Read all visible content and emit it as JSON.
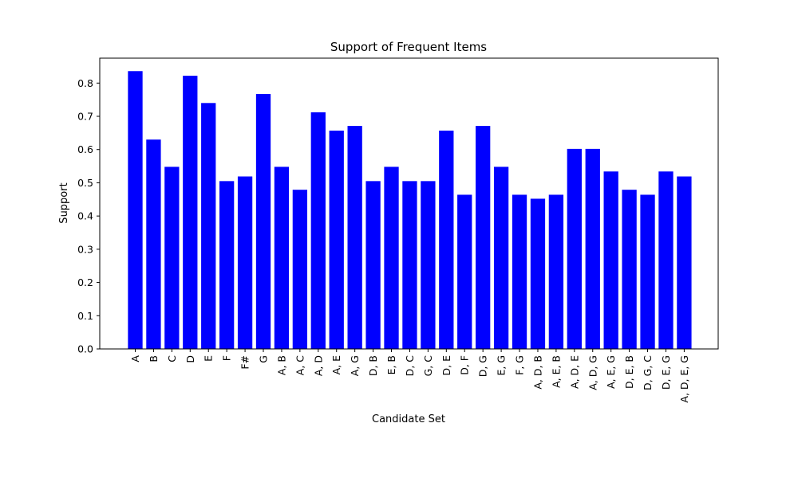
{
  "chart_data": {
    "type": "bar",
    "title": "Support of Frequent Items",
    "xlabel": "Candidate Set",
    "ylabel": "Support",
    "ylim": [
      0,
      0.875
    ],
    "yticks": [
      0.0,
      0.1,
      0.2,
      0.3,
      0.4,
      0.5,
      0.6,
      0.7,
      0.8
    ],
    "ytick_labels": [
      "0.0",
      "0.1",
      "0.2",
      "0.3",
      "0.4",
      "0.5",
      "0.6",
      "0.7",
      "0.8"
    ],
    "grid": false,
    "bar_color": "#0000ff",
    "categories": [
      "A",
      "B",
      "C",
      "D",
      "E",
      "F",
      "F#",
      "G",
      "A, B",
      "A, C",
      "A, D",
      "A, E",
      "A, G",
      "D, B",
      "E, B",
      "D, C",
      "G, C",
      "D, E",
      "D, F",
      "D, G",
      "E, G",
      "F, G",
      "A, D, B",
      "A, E, B",
      "A, D, E",
      "A, D, G",
      "A, E, G",
      "D, E, B",
      "D, G, C",
      "D, E, G",
      "A, D, E, G"
    ],
    "values": [
      0.836,
      0.63,
      0.548,
      0.822,
      0.74,
      0.505,
      0.519,
      0.767,
      0.548,
      0.479,
      0.712,
      0.657,
      0.671,
      0.505,
      0.548,
      0.505,
      0.505,
      0.657,
      0.464,
      0.671,
      0.548,
      0.464,
      0.452,
      0.464,
      0.602,
      0.602,
      0.534,
      0.479,
      0.464,
      0.534,
      0.519
    ]
  }
}
